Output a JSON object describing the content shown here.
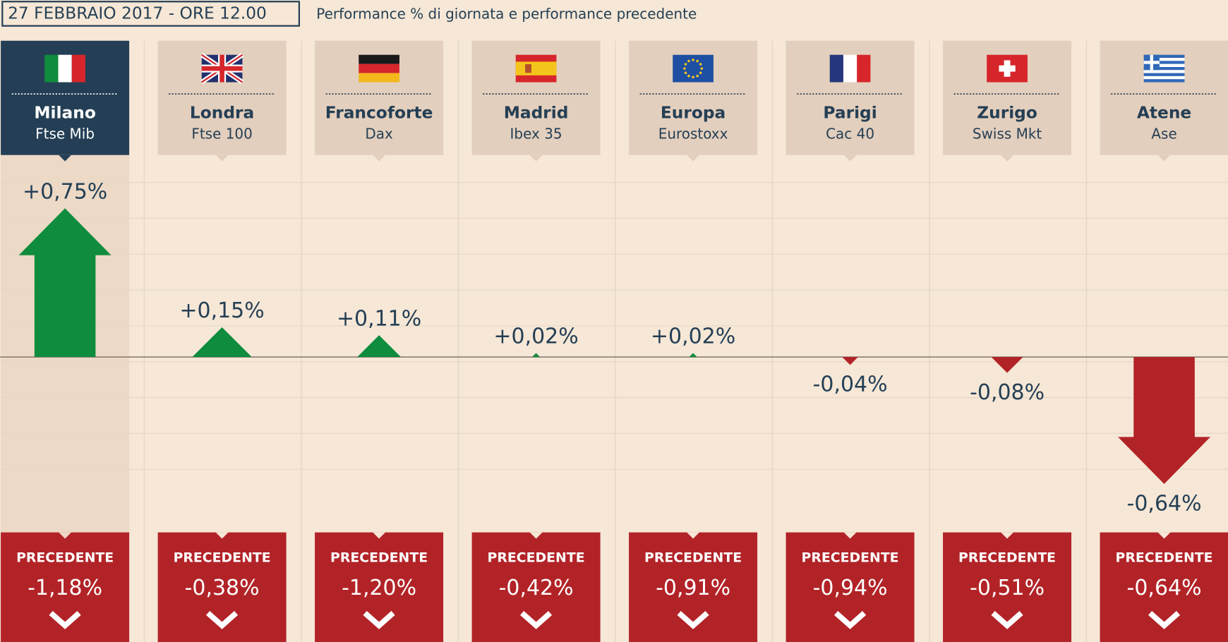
{
  "chart_data": {
    "type": "arrows",
    "title": "27 FEBBRAIO 2017 - ORE 12.00",
    "subtitle": "Performance % di giornata e performance precedente",
    "categories": [
      "Milano",
      "Londra",
      "Francoforte",
      "Madrid",
      "Europa",
      "Parigi",
      "Zurigo",
      "Atene"
    ],
    "indices": [
      "Ftse Mib",
      "Ftse 100",
      "Dax",
      "Ibex 35",
      "Eurostoxx",
      "Cac 40",
      "Swiss Mkt",
      "Ase"
    ],
    "values": [
      0.75,
      0.15,
      0.11,
      0.02,
      0.02,
      -0.04,
      -0.08,
      -0.64
    ],
    "value_labels": [
      "+0,75%",
      "+0,15%",
      "+0,11%",
      "+0,02%",
      "+0,02%",
      "-0,04%",
      "-0,08%",
      "-0,64%"
    ],
    "previous_label": "PRECEDENTE",
    "previous_values": [
      -1.18,
      -0.38,
      -1.2,
      -0.42,
      -0.91,
      -0.94,
      -0.51,
      -0.64
    ],
    "previous_value_labels": [
      "-1,18%",
      "-0,38%",
      "-1,20%",
      "-0,42%",
      "-0,91%",
      "-0,94%",
      "-0,51%",
      "-0,64%"
    ],
    "highlight": 0,
    "positive_color": "#0f8c3e",
    "negative_color": "#b22327"
  }
}
